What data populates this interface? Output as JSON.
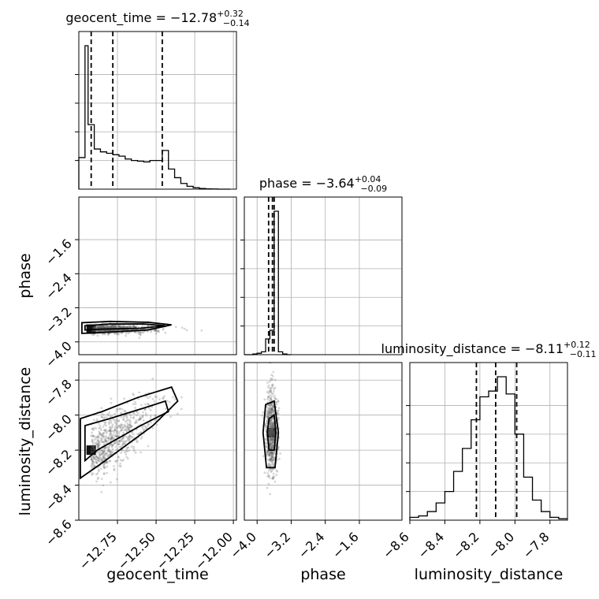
{
  "chart_data": {
    "type": "corner",
    "parameters": [
      "geocent_time",
      "phase",
      "luminosity_distance"
    ],
    "axis_labels": {
      "geocent_time": "geocent_time",
      "phase": "phase",
      "luminosity_distance": "luminosity_distance"
    },
    "ranges": {
      "geocent_time": [
        -13.0,
        -11.98
      ],
      "phase": [
        -4.3,
        -0.6
      ],
      "luminosity_distance": [
        -8.6,
        -7.7
      ]
    },
    "ticks": {
      "geocent_time": [
        -12.75,
        -12.5,
        -12.25,
        -12.0
      ],
      "phase": [
        -4.0,
        -3.2,
        -2.4,
        -1.6
      ],
      "luminosity_distance": [
        -8.6,
        -8.4,
        -8.2,
        -8.0,
        -7.8
      ]
    },
    "tick_labels": {
      "geocent_time": [
        "−12.75",
        "−12.50",
        "−12.25",
        "−12.00"
      ],
      "phase": [
        "−4.0",
        "−3.2",
        "−2.4",
        "−1.6"
      ],
      "luminosity_distance": [
        "−8.6",
        "−8.4",
        "−8.2",
        "−8.0",
        "−7.8"
      ]
    },
    "titles": [
      {
        "param": "geocent_time",
        "text": "geocent_time = −12.78",
        "plus": "+0.32",
        "minus": "−0.14"
      },
      {
        "param": "phase",
        "text": "phase = −3.64",
        "plus": "+0.04",
        "minus": "−0.09"
      },
      {
        "param": "luminosity_distance",
        "text": "luminosity_distance = −8.11",
        "plus": "+0.12",
        "minus": "−0.11"
      }
    ],
    "marginals": {
      "geocent_time": {
        "edges": [
          -13.0,
          -12.96,
          -12.94,
          -12.9,
          -12.86,
          -12.82,
          -12.78,
          -12.74,
          -12.7,
          -12.66,
          -12.62,
          -12.58,
          -12.54,
          -12.5,
          -12.46,
          -12.42,
          -12.38,
          -12.34,
          -12.3,
          -12.26,
          -12.22,
          -12.18,
          -12.14,
          -12.1,
          -12.06,
          -12.02
        ],
        "counts": [
          0.22,
          1.0,
          0.45,
          0.28,
          0.26,
          0.25,
          0.24,
          0.23,
          0.21,
          0.2,
          0.195,
          0.19,
          0.2,
          0.2,
          0.27,
          0.14,
          0.08,
          0.04,
          0.02,
          0.01,
          0.005,
          0.002,
          0.001,
          0.0,
          0.0
        ],
        "quantiles": [
          -12.92,
          -12.78,
          -12.46
        ]
      },
      "phase": {
        "edges": [
          -4.3,
          -4.2,
          -4.1,
          -4.0,
          -3.9,
          -3.8,
          -3.7,
          -3.6,
          -3.5,
          -3.4,
          -3.3,
          -3.2
        ],
        "counts": [
          0.0,
          0.0,
          0.005,
          0.01,
          0.02,
          0.11,
          0.17,
          1.0,
          0.02,
          0.005,
          0.0
        ],
        "quantiles": [
          -3.73,
          -3.64,
          -3.6
        ]
      },
      "luminosity_distance": {
        "edges": [
          -8.6,
          -8.55,
          -8.5,
          -8.45,
          -8.4,
          -8.35,
          -8.3,
          -8.25,
          -8.2,
          -8.15,
          -8.1,
          -8.05,
          -8.0,
          -7.95,
          -7.9,
          -7.85,
          -7.8,
          -7.75,
          -7.7
        ],
        "counts": [
          0.02,
          0.03,
          0.06,
          0.12,
          0.2,
          0.34,
          0.5,
          0.7,
          0.86,
          0.9,
          1.0,
          0.88,
          0.6,
          0.3,
          0.14,
          0.06,
          0.02,
          0.01
        ],
        "quantiles": [
          -8.22,
          -8.11,
          -7.99
        ]
      }
    },
    "pairs": [
      {
        "x": "geocent_time",
        "y": "phase",
        "center": [
          -12.92,
          -3.7
        ],
        "contours": [
          [
            [
              -12.96,
              -3.62
            ],
            [
              -12.8,
              -3.58
            ],
            [
              -12.58,
              -3.58
            ],
            [
              -12.44,
              -3.62
            ],
            [
              -12.6,
              -3.68
            ],
            [
              -12.85,
              -3.7
            ],
            [
              -12.96,
              -3.72
            ]
          ],
          [
            [
              -12.98,
              -3.55
            ],
            [
              -12.8,
              -3.52
            ],
            [
              -12.55,
              -3.54
            ],
            [
              -12.4,
              -3.6
            ],
            [
              -12.55,
              -3.72
            ],
            [
              -12.85,
              -3.78
            ],
            [
              -12.98,
              -3.8
            ]
          ]
        ]
      },
      {
        "x": "geocent_time",
        "y": "luminosity_distance",
        "center": [
          -12.92,
          -8.2
        ],
        "contours": [
          [
            [
              -12.96,
              -8.06
            ],
            [
              -12.8,
              -8.02
            ],
            [
              -12.58,
              -7.96
            ],
            [
              -12.44,
              -7.92
            ],
            [
              -12.42,
              -7.98
            ],
            [
              -12.6,
              -8.06
            ],
            [
              -12.88,
              -8.2
            ],
            [
              -12.96,
              -8.26
            ]
          ],
          [
            [
              -12.99,
              -8.02
            ],
            [
              -12.85,
              -7.98
            ],
            [
              -12.62,
              -7.9
            ],
            [
              -12.4,
              -7.84
            ],
            [
              -12.36,
              -7.92
            ],
            [
              -12.52,
              -8.06
            ],
            [
              -12.86,
              -8.28
            ],
            [
              -12.99,
              -8.36
            ]
          ]
        ]
      },
      {
        "x": "phase",
        "y": "luminosity_distance",
        "center": [
          -3.66,
          -8.1
        ],
        "contours": [
          [
            [
              -3.72,
              -8.02
            ],
            [
              -3.6,
              -8.0
            ],
            [
              -3.56,
              -8.1
            ],
            [
              -3.6,
              -8.2
            ],
            [
              -3.72,
              -8.2
            ],
            [
              -3.76,
              -8.1
            ]
          ],
          [
            [
              -3.8,
              -7.94
            ],
            [
              -3.6,
              -7.92
            ],
            [
              -3.5,
              -8.1
            ],
            [
              -3.58,
              -8.3
            ],
            [
              -3.78,
              -8.3
            ],
            [
              -3.86,
              -8.1
            ]
          ]
        ]
      }
    ],
    "scatter_seed": 7,
    "scatter_count": 700,
    "grid": true
  }
}
